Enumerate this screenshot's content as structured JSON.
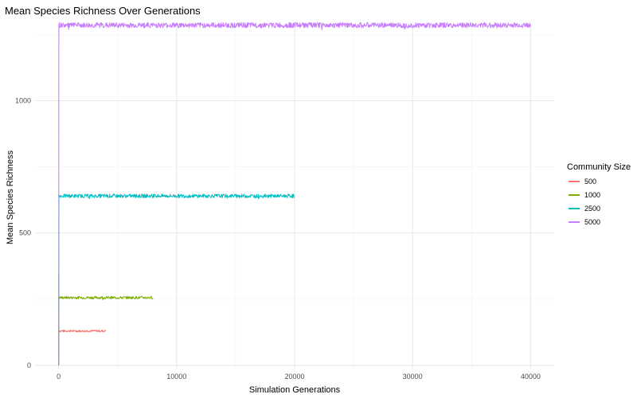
{
  "chart_data": {
    "type": "line",
    "title": "Mean Species Richness Over Generations",
    "xlabel": "Simulation Generations",
    "ylabel": "Mean Species Richness",
    "xlim": [
      -2000,
      42000
    ],
    "ylim": [
      -15,
      1290
    ],
    "x_ticks": [
      0,
      10000,
      20000,
      30000,
      40000
    ],
    "y_ticks": [
      0,
      500,
      1000
    ],
    "grid": true,
    "legend": {
      "title": "Community Size",
      "position": "right",
      "entries": [
        "500",
        "1000",
        "2500",
        "5000"
      ]
    },
    "series": [
      {
        "name": "500",
        "color": "#F8766D",
        "end_x": 4000,
        "plateau": 130,
        "noise": 4,
        "init": [
          0,
          40,
          80,
          150
        ]
      },
      {
        "name": "1000",
        "color": "#7CAE00",
        "end_x": 8000,
        "plateau": 256,
        "noise": 5,
        "init": [
          0,
          160,
          215,
          256
        ]
      },
      {
        "name": "2500",
        "color": "#00BFC4",
        "end_x": 20000,
        "plateau": 640,
        "noise": 7,
        "init": [
          0,
          340,
          200,
          560,
          640
        ]
      },
      {
        "name": "5000",
        "color": "#C77CFF",
        "end_x": 40000,
        "plateau": 1285,
        "noise": 10,
        "init": [
          0,
          0,
          1125,
          1285
        ]
      }
    ]
  }
}
